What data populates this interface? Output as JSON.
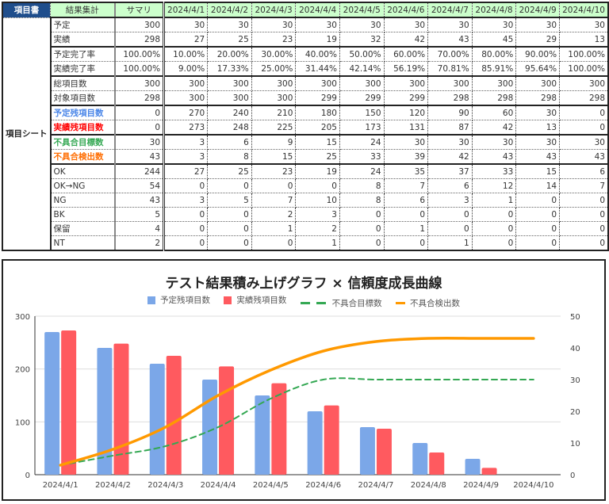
{
  "sheet": {
    "corner_label": "項目書",
    "header": {
      "label": "結果集計",
      "summary": "サマリ",
      "dates": [
        "2024/4/1",
        "2024/4/2",
        "2024/4/3",
        "2024/4/4",
        "2024/4/5",
        "2024/4/6",
        "2024/4/7",
        "2024/4/8",
        "2024/4/9",
        "2024/4/10"
      ]
    },
    "side_label": "項目シート",
    "rows": [
      {
        "label": "予定",
        "summary": "300",
        "values": [
          "30",
          "30",
          "30",
          "30",
          "30",
          "30",
          "30",
          "30",
          "30",
          "30"
        ]
      },
      {
        "label": "実績",
        "summary": "298",
        "values": [
          "27",
          "25",
          "23",
          "19",
          "32",
          "42",
          "43",
          "45",
          "29",
          "13"
        ]
      },
      {
        "label": "予定完了率",
        "summary": "100.00%",
        "values": [
          "10.00%",
          "20.00%",
          "30.00%",
          "40.00%",
          "50.00%",
          "60.00%",
          "70.00%",
          "80.00%",
          "90.00%",
          "100.00%"
        ]
      },
      {
        "label": "実績完了率",
        "summary": "100.00%",
        "values": [
          "9.00%",
          "17.33%",
          "25.00%",
          "31.44%",
          "42.14%",
          "56.19%",
          "70.81%",
          "85.91%",
          "95.64%",
          "100.00%"
        ]
      },
      {
        "label": "総項目数",
        "summary": "300",
        "values": [
          "300",
          "300",
          "300",
          "300",
          "300",
          "300",
          "300",
          "300",
          "300",
          "300"
        ]
      },
      {
        "label": "対象項目数",
        "summary": "298",
        "values": [
          "300",
          "300",
          "300",
          "299",
          "299",
          "299",
          "298",
          "298",
          "298",
          "298"
        ]
      },
      {
        "label": "予定残項目数",
        "summary": "0",
        "values": [
          "270",
          "240",
          "210",
          "180",
          "150",
          "120",
          "90",
          "60",
          "30",
          "0"
        ]
      },
      {
        "label": "実績残項目数",
        "summary": "0",
        "values": [
          "273",
          "248",
          "225",
          "205",
          "173",
          "131",
          "87",
          "42",
          "13",
          "0"
        ]
      },
      {
        "label": "不具合目標数",
        "summary": "30",
        "values": [
          "3",
          "6",
          "9",
          "15",
          "24",
          "30",
          "30",
          "30",
          "30",
          "30"
        ]
      },
      {
        "label": "不具合検出数",
        "summary": "43",
        "values": [
          "3",
          "8",
          "15",
          "25",
          "33",
          "39",
          "42",
          "43",
          "43",
          "43"
        ]
      },
      {
        "label": "OK",
        "summary": "244",
        "values": [
          "27",
          "25",
          "23",
          "19",
          "24",
          "35",
          "37",
          "33",
          "15",
          "6"
        ]
      },
      {
        "label": "OK→NG",
        "summary": "54",
        "values": [
          "0",
          "0",
          "0",
          "0",
          "8",
          "7",
          "6",
          "12",
          "14",
          "7"
        ]
      },
      {
        "label": "NG",
        "summary": "43",
        "values": [
          "3",
          "5",
          "7",
          "10",
          "8",
          "6",
          "3",
          "1",
          "0",
          "0"
        ]
      },
      {
        "label": "BK",
        "summary": "5",
        "values": [
          "0",
          "0",
          "2",
          "3",
          "0",
          "0",
          "0",
          "0",
          "0",
          "0"
        ]
      },
      {
        "label": "保留",
        "summary": "4",
        "values": [
          "0",
          "0",
          "1",
          "2",
          "0",
          "1",
          "0",
          "0",
          "0",
          "0"
        ]
      },
      {
        "label": "NT",
        "summary": "2",
        "values": [
          "0",
          "0",
          "0",
          "1",
          "0",
          "0",
          "1",
          "0",
          "0",
          "0"
        ]
      }
    ]
  },
  "colors": {
    "corner_bg": "#1f4e8c",
    "header_bg": "#ccffcc",
    "planned_remaining": "#7ba7e8",
    "actual_remaining": "#ff5a5f",
    "defect_target": "#34a853",
    "defect_found": "#ff9900"
  },
  "chart_data": {
    "type": "bar",
    "title": "テスト結果積み上げグラフ × 信頼度成長曲線",
    "categories": [
      "2024/4/1",
      "2024/4/2",
      "2024/4/3",
      "2024/4/4",
      "2024/4/5",
      "2024/4/6",
      "2024/4/7",
      "2024/4/8",
      "2024/4/9",
      "2024/4/10"
    ],
    "series": [
      {
        "name": "予定残項目数",
        "type": "bar",
        "axis": "left",
        "color": "#7ba7e8",
        "values": [
          270,
          240,
          210,
          180,
          150,
          120,
          90,
          60,
          30,
          0
        ]
      },
      {
        "name": "実績残項目数",
        "type": "bar",
        "axis": "left",
        "color": "#ff5a5f",
        "values": [
          273,
          248,
          225,
          205,
          173,
          131,
          87,
          42,
          13,
          0
        ]
      },
      {
        "name": "不具合目標数",
        "type": "line",
        "style": "dashed",
        "axis": "right",
        "color": "#34a853",
        "values": [
          3,
          6,
          9,
          15,
          24,
          30,
          30,
          30,
          30,
          30
        ]
      },
      {
        "name": "不具合検出数",
        "type": "line",
        "style": "solid",
        "axis": "right",
        "color": "#ff9900",
        "values": [
          3,
          8,
          15,
          25,
          33,
          39,
          42,
          43,
          43,
          43
        ]
      }
    ],
    "left_axis": {
      "ticks": [
        "0",
        "100",
        "200",
        "300"
      ],
      "ylim": [
        0,
        300
      ]
    },
    "right_axis": {
      "ticks": [
        "0",
        "10",
        "20",
        "30",
        "40",
        "50"
      ],
      "ylim": [
        0,
        50
      ]
    },
    "xlabel": "",
    "ylabel": "",
    "grid": true,
    "legend_position": "top"
  }
}
